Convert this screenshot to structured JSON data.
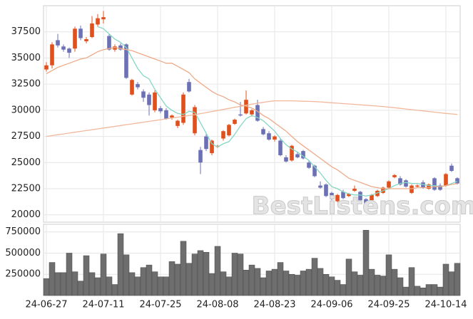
{
  "chart_data": [
    {
      "type": "candlestick",
      "watermark": "BestListens.com",
      "open": [
        33900,
        34300,
        36700,
        36100,
        35900,
        35900,
        37800,
        36600,
        37000,
        38200,
        38700,
        37100,
        35800,
        36200,
        36300,
        31500,
        32500,
        31800,
        31500,
        30000,
        30200,
        30000,
        29300,
        28500,
        28800,
        32700,
        27800,
        26200,
        27500,
        25900,
        26500,
        27300,
        27600,
        28700,
        29600,
        29700,
        29600,
        30500,
        28200,
        27800,
        27200,
        27100,
        25500,
        25200,
        25800,
        26100,
        25000,
        24700,
        22800,
        22900,
        22100,
        21300,
        22200,
        21800,
        22300,
        22200,
        21500,
        21400,
        21800,
        22100,
        22600,
        23600,
        23500,
        23300,
        22100,
        22700,
        23100,
        22500,
        23500,
        22800,
        22800,
        24700,
        23500
      ],
      "high": [
        34600,
        36500,
        37300,
        36300,
        36000,
        38000,
        38100,
        37000,
        39000,
        39200,
        39500,
        37300,
        36300,
        36400,
        36400,
        33000,
        32700,
        32000,
        31700,
        31900,
        30400,
        30200,
        29600,
        29100,
        31700,
        33000,
        30500,
        26500,
        27700,
        27200,
        26700,
        28100,
        28700,
        29200,
        30800,
        31900,
        30100,
        31000,
        28400,
        28000,
        27600,
        27300,
        25700,
        26700,
        26000,
        26200,
        25200,
        24800,
        23200,
        23000,
        22200,
        22000,
        22400,
        22100,
        22800,
        22300,
        21600,
        22000,
        22400,
        22700,
        23300,
        23900,
        23700,
        23400,
        22900,
        22900,
        23300,
        23000,
        23600,
        23000,
        24000,
        24900,
        23600
      ],
      "low": [
        33700,
        34000,
        36000,
        35600,
        35000,
        35600,
        36700,
        36400,
        36900,
        38000,
        38300,
        35700,
        35600,
        35700,
        33000,
        31400,
        32000,
        30800,
        29500,
        29800,
        29700,
        29100,
        29100,
        28300,
        28600,
        31700,
        27600,
        23900,
        26100,
        25700,
        26400,
        27100,
        27500,
        28600,
        29400,
        29600,
        29400,
        28900,
        27600,
        27100,
        27000,
        25600,
        25000,
        25100,
        25400,
        25300,
        24400,
        23600,
        22500,
        21700,
        21400,
        21200,
        21500,
        21700,
        22200,
        21300,
        20600,
        21300,
        21700,
        22000,
        22500,
        23500,
        22800,
        22600,
        22000,
        22600,
        22500,
        22400,
        22300,
        22300,
        22700,
        24100,
        22900
      ],
      "close": [
        34300,
        36300,
        36200,
        35800,
        35500,
        37800,
        36900,
        36800,
        38300,
        38800,
        38900,
        35800,
        36100,
        35800,
        33100,
        32900,
        32200,
        31200,
        30500,
        31700,
        29900,
        29200,
        29500,
        29000,
        31500,
        31800,
        30300,
        25000,
        26300,
        27100,
        26600,
        28000,
        28600,
        29100,
        29500,
        31000,
        30000,
        29000,
        27700,
        27200,
        27500,
        25700,
        25100,
        26600,
        25500,
        25400,
        24500,
        23700,
        22600,
        21800,
        21500,
        21900,
        21600,
        22000,
        22500,
        21400,
        21000,
        21900,
        22300,
        22600,
        23200,
        23800,
        22900,
        22700,
        22800,
        22800,
        22600,
        22900,
        22400,
        22400,
        23900,
        24200,
        23000
      ],
      "up_color": "#e0501c",
      "down_color": "#6c70b4",
      "series": [
        {
          "color": "#86d6c4",
          "values": [
            null,
            null,
            null,
            null,
            null,
            null,
            null,
            null,
            null,
            38000,
            37800,
            37300,
            36800,
            36500,
            36000,
            35000,
            34000,
            33300,
            33000,
            32000,
            31200,
            30400,
            30000,
            29700,
            29600,
            29900,
            29800,
            28800,
            27800,
            26800,
            26500,
            26800,
            27000,
            27700,
            28500,
            29200,
            29500,
            29300,
            29000,
            28500,
            28000,
            27300,
            26700,
            26300,
            26000,
            25600,
            25200,
            24600,
            24000,
            23300,
            22700,
            22500,
            22200,
            22000,
            21900,
            21900,
            21800,
            21900,
            22100,
            22300,
            22500,
            22800,
            23000,
            23100,
            23000,
            23000,
            22900,
            22800,
            22800,
            22700,
            22800,
            23000,
            23200
          ]
        },
        {
          "color": "#eeaa88",
          "values": [
            33500,
            33800,
            34100,
            34300,
            34500,
            34700,
            34900,
            35000,
            35300,
            35600,
            35800,
            35900,
            36000,
            35900,
            35800,
            35700,
            35500,
            35300,
            35100,
            34900,
            34700,
            34500,
            34500,
            34200,
            33900,
            33600,
            33000,
            32600,
            32200,
            31800,
            31500,
            31300,
            31000,
            30800,
            30500,
            30400,
            30200,
            29900,
            29500,
            29200,
            28800,
            28400,
            28000,
            27500,
            27000,
            26600,
            26200,
            25800,
            25400,
            25000,
            24600,
            24300,
            23900,
            23500,
            23300,
            23100,
            22900,
            22700,
            22600,
            22500,
            22500,
            22500,
            22500,
            22500,
            22500,
            22600,
            22600,
            22600,
            22700,
            22700,
            22800,
            22900,
            23000
          ]
        },
        {
          "color": "#f2b89c",
          "values": [
            27500,
            27580,
            27660,
            27740,
            27820,
            27900,
            27980,
            28060,
            28140,
            28220,
            28300,
            28380,
            28460,
            28540,
            28620,
            28700,
            28780,
            28860,
            28940,
            29020,
            29100,
            29180,
            29260,
            29340,
            29420,
            29500,
            29580,
            29680,
            29780,
            29880,
            29980,
            30080,
            30180,
            30280,
            30380,
            30480,
            30580,
            30680,
            30760,
            30840,
            30900,
            30900,
            30900,
            30900,
            30880,
            30860,
            30850,
            30830,
            30800,
            30760,
            30720,
            30680,
            30640,
            30600,
            30560,
            30520,
            30480,
            30440,
            30400,
            30360,
            30300,
            30240,
            30180,
            30120,
            30060,
            30000,
            29940,
            29880,
            29820,
            29760,
            29700,
            29650,
            29600
          ]
        }
      ],
      "ylim": [
        19300,
        40000
      ],
      "yticks": [
        20000,
        22500,
        25000,
        27500,
        30000,
        32500,
        35000,
        37500
      ],
      "grid": true
    },
    {
      "type": "bar",
      "color": "#6e6e6e",
      "categories": [
        "24-06-27",
        null,
        null,
        null,
        null,
        null,
        null,
        null,
        null,
        null,
        "24-07-11",
        null,
        null,
        null,
        null,
        null,
        null,
        null,
        null,
        null,
        "24-07-25",
        null,
        null,
        null,
        null,
        null,
        null,
        null,
        null,
        null,
        "24-08-08",
        null,
        null,
        null,
        null,
        null,
        null,
        null,
        null,
        null,
        "24-08-23",
        null,
        null,
        null,
        null,
        null,
        null,
        null,
        null,
        null,
        "24-09-06",
        null,
        null,
        null,
        null,
        null,
        null,
        null,
        null,
        null,
        "24-09-25",
        null,
        null,
        null,
        null,
        null,
        null,
        null,
        null,
        null,
        "24-10-14",
        null,
        null
      ],
      "values": [
        200000,
        390000,
        270000,
        270000,
        500000,
        280000,
        170000,
        470000,
        270000,
        210000,
        490000,
        220000,
        130000,
        730000,
        480000,
        270000,
        220000,
        330000,
        360000,
        280000,
        220000,
        220000,
        400000,
        370000,
        640000,
        380000,
        490000,
        530000,
        510000,
        260000,
        580000,
        280000,
        220000,
        500000,
        490000,
        300000,
        360000,
        320000,
        210000,
        290000,
        310000,
        390000,
        290000,
        250000,
        240000,
        290000,
        310000,
        440000,
        320000,
        250000,
        220000,
        180000,
        130000,
        430000,
        280000,
        240000,
        770000,
        310000,
        240000,
        230000,
        480000,
        310000,
        210000,
        100000,
        330000,
        110000,
        90000,
        130000,
        130000,
        100000,
        370000,
        280000,
        380000
      ],
      "ylim": [
        0,
        840000
      ],
      "yticks": [
        250000,
        500000,
        750000
      ],
      "grid": true
    }
  ]
}
